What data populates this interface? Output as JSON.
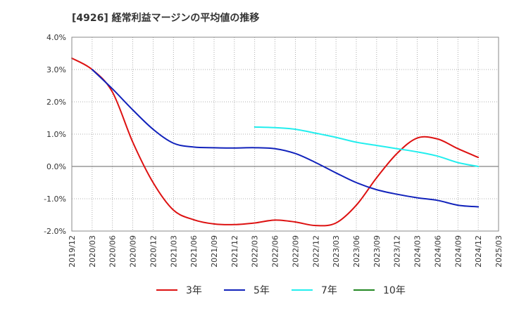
{
  "chart_data": {
    "type": "line",
    "title": "[4926]  経常利益マージンの平均値の推移",
    "xlabel": "",
    "ylabel": "",
    "ylim": [
      -2.0,
      4.0
    ],
    "y_ticks": [
      4.0,
      3.0,
      2.0,
      1.0,
      0.0,
      -1.0,
      -2.0
    ],
    "y_tick_labels": [
      "4.0%",
      "3.0%",
      "2.0%",
      "1.0%",
      "0.0%",
      "-1.0%",
      "-2.0%"
    ],
    "x_tick_labels": [
      "2019/12",
      "2020/03",
      "2020/06",
      "2020/09",
      "2020/12",
      "2021/03",
      "2021/06",
      "2021/09",
      "2021/12",
      "2022/03",
      "2022/06",
      "2022/09",
      "2022/12",
      "2023/03",
      "2023/06",
      "2023/09",
      "2023/12",
      "2024/03",
      "2024/06",
      "2024/09",
      "2024/12",
      "2025/03"
    ],
    "grid": true,
    "legend_position": "bottom",
    "series": [
      {
        "name": "3年",
        "color": "#dd1111",
        "points": [
          [
            "2019/12",
            3.35
          ],
          [
            "2020/03",
            3.0
          ],
          [
            "2020/06",
            2.3
          ],
          [
            "2020/09",
            0.75
          ],
          [
            "2020/12",
            -0.5
          ],
          [
            "2021/03",
            -1.35
          ],
          [
            "2021/06",
            -1.65
          ],
          [
            "2021/09",
            -1.78
          ],
          [
            "2021/12",
            -1.8
          ],
          [
            "2022/03",
            -1.75
          ],
          [
            "2022/06",
            -1.66
          ],
          [
            "2022/09",
            -1.72
          ],
          [
            "2022/12",
            -1.83
          ],
          [
            "2023/03",
            -1.75
          ],
          [
            "2023/06",
            -1.2
          ],
          [
            "2023/09",
            -0.35
          ],
          [
            "2023/12",
            0.4
          ],
          [
            "2024/03",
            0.88
          ],
          [
            "2024/06",
            0.85
          ],
          [
            "2024/09",
            0.55
          ],
          [
            "2024/12",
            0.28
          ]
        ]
      },
      {
        "name": "5年",
        "color": "#1122bb",
        "points": [
          [
            "2020/03",
            3.0
          ],
          [
            "2020/06",
            2.4
          ],
          [
            "2020/09",
            1.75
          ],
          [
            "2020/12",
            1.15
          ],
          [
            "2021/03",
            0.72
          ],
          [
            "2021/06",
            0.6
          ],
          [
            "2021/09",
            0.58
          ],
          [
            "2021/12",
            0.57
          ],
          [
            "2022/03",
            0.58
          ],
          [
            "2022/06",
            0.55
          ],
          [
            "2022/09",
            0.4
          ],
          [
            "2022/12",
            0.12
          ],
          [
            "2023/03",
            -0.2
          ],
          [
            "2023/06",
            -0.5
          ],
          [
            "2023/09",
            -0.72
          ],
          [
            "2023/12",
            -0.86
          ],
          [
            "2024/03",
            -0.97
          ],
          [
            "2024/06",
            -1.05
          ],
          [
            "2024/09",
            -1.2
          ],
          [
            "2024/12",
            -1.25
          ]
        ]
      },
      {
        "name": "7年",
        "color": "#22eeee",
        "points": [
          [
            "2022/03",
            1.22
          ],
          [
            "2022/06",
            1.2
          ],
          [
            "2022/09",
            1.15
          ],
          [
            "2022/12",
            1.03
          ],
          [
            "2023/03",
            0.9
          ],
          [
            "2023/06",
            0.75
          ],
          [
            "2023/09",
            0.65
          ],
          [
            "2023/12",
            0.55
          ],
          [
            "2024/03",
            0.45
          ],
          [
            "2024/06",
            0.32
          ],
          [
            "2024/09",
            0.12
          ],
          [
            "2024/12",
            0.0
          ]
        ]
      },
      {
        "name": "10年",
        "color": "#228822",
        "points": []
      }
    ]
  }
}
